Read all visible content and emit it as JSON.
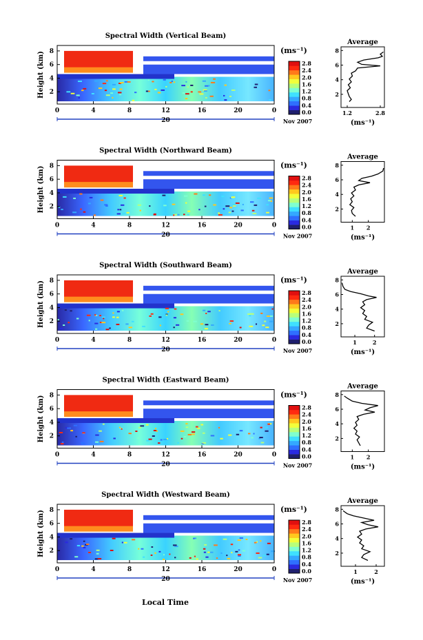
{
  "colors": {
    "colorbar": [
      "#1f1f6e",
      "#2a2ae0",
      "#2f6fff",
      "#34a8ff",
      "#3fe0ff",
      "#7fffd0",
      "#b8ff7a",
      "#f2ff3a",
      "#ffc81e",
      "#ff7a1a",
      "#ff2a10",
      "#e01010"
    ]
  },
  "common": {
    "x_ticks": [
      "0",
      "4",
      "8",
      "12",
      "16",
      "20",
      "0"
    ],
    "date_marker": "20",
    "date_label": "Nov 2007",
    "ylabel": "Height (km)",
    "y_ticks": [
      "2",
      "4",
      "6",
      "8"
    ],
    "colorbar_unit": "(ms⁻¹)",
    "colorbar_ticks": [
      "0.0",
      "0.4",
      "0.8",
      "1.2",
      "1.6",
      "2.0",
      "2.4",
      "2.8"
    ],
    "avg_title": "Average",
    "avg_xlabel": "(ms⁻¹)",
    "xlabel": "Local Time"
  },
  "chart_data": [
    {
      "type": "heatmap",
      "title": "Spectral Width (Vertical Beam)",
      "avg_xticks": [
        "1.2",
        "2.8"
      ],
      "avg_xlim": [
        0.9,
        3.0
      ],
      "avg_profile": [
        [
          1.3,
          1.0
        ],
        [
          1.4,
          1.3
        ],
        [
          1.3,
          1.7
        ],
        [
          1.25,
          2.1
        ],
        [
          1.2,
          2.5
        ],
        [
          1.35,
          2.9
        ],
        [
          1.25,
          3.3
        ],
        [
          1.4,
          3.7
        ],
        [
          1.3,
          4.1
        ],
        [
          1.45,
          4.5
        ],
        [
          1.4,
          4.9
        ],
        [
          1.6,
          5.2
        ],
        [
          1.7,
          5.6
        ],
        [
          2.8,
          5.9
        ],
        [
          1.9,
          6.1
        ],
        [
          1.7,
          6.4
        ],
        [
          2.0,
          6.7
        ],
        [
          2.7,
          7.0
        ],
        [
          2.9,
          7.2
        ],
        [
          2.8,
          7.5
        ],
        [
          2.95,
          7.8
        ]
      ]
    },
    {
      "type": "heatmap",
      "title": "Spectral Width (Northward Beam)",
      "avg_xticks": [
        "1",
        "2"
      ],
      "avg_xlim": [
        0.3,
        3.0
      ],
      "avg_profile": [
        [
          1.2,
          1.0
        ],
        [
          1.0,
          1.4
        ],
        [
          0.95,
          1.8
        ],
        [
          1.1,
          2.2
        ],
        [
          0.85,
          2.6
        ],
        [
          1.0,
          3.0
        ],
        [
          0.9,
          3.4
        ],
        [
          1.1,
          3.8
        ],
        [
          0.95,
          4.2
        ],
        [
          1.2,
          4.6
        ],
        [
          1.1,
          5.0
        ],
        [
          1.4,
          5.3
        ],
        [
          2.1,
          5.6
        ],
        [
          1.4,
          5.9
        ],
        [
          1.6,
          6.2
        ],
        [
          2.2,
          6.5
        ],
        [
          2.6,
          6.8
        ],
        [
          2.9,
          7.2
        ],
        [
          2.95,
          7.6
        ]
      ]
    },
    {
      "type": "heatmap",
      "title": "Spectral Width (Southward Beam)",
      "avg_xticks": [
        "1",
        "2"
      ],
      "avg_xlim": [
        0.3,
        2.5
      ],
      "avg_profile": [
        [
          2.0,
          1.0
        ],
        [
          1.6,
          1.4
        ],
        [
          1.7,
          1.8
        ],
        [
          1.9,
          2.2
        ],
        [
          1.5,
          2.6
        ],
        [
          1.6,
          3.0
        ],
        [
          1.4,
          3.4
        ],
        [
          1.5,
          3.8
        ],
        [
          1.3,
          4.2
        ],
        [
          1.5,
          4.6
        ],
        [
          1.4,
          5.0
        ],
        [
          1.6,
          5.3
        ],
        [
          2.1,
          5.6
        ],
        [
          1.7,
          5.8
        ],
        [
          1.3,
          6.1
        ],
        [
          0.8,
          6.4
        ],
        [
          0.5,
          6.7
        ],
        [
          0.4,
          7.1
        ],
        [
          0.35,
          7.6
        ]
      ]
    },
    {
      "type": "heatmap",
      "title": "Spectral Width (Eastward Beam)",
      "avg_xticks": [
        "1",
        "2"
      ],
      "avg_xlim": [
        0.3,
        3.0
      ],
      "avg_profile": [
        [
          1.5,
          1.0
        ],
        [
          1.4,
          1.4
        ],
        [
          1.3,
          1.8
        ],
        [
          1.45,
          2.2
        ],
        [
          1.2,
          2.6
        ],
        [
          1.3,
          3.0
        ],
        [
          1.1,
          3.4
        ],
        [
          1.3,
          3.8
        ],
        [
          1.2,
          4.2
        ],
        [
          1.4,
          4.6
        ],
        [
          1.3,
          5.0
        ],
        [
          1.7,
          5.3
        ],
        [
          2.4,
          5.6
        ],
        [
          1.8,
          5.9
        ],
        [
          2.1,
          6.2
        ],
        [
          2.6,
          6.5
        ],
        [
          1.6,
          6.8
        ],
        [
          1.0,
          7.1
        ],
        [
          0.7,
          7.5
        ],
        [
          0.5,
          7.8
        ]
      ]
    },
    {
      "type": "heatmap",
      "title": "Spectral Width (Westward Beam)",
      "avg_xticks": [
        "1",
        "2"
      ],
      "avg_xlim": [
        0.3,
        2.4
      ],
      "avg_profile": [
        [
          1.6,
          1.0
        ],
        [
          1.3,
          1.4
        ],
        [
          1.4,
          1.8
        ],
        [
          1.7,
          2.2
        ],
        [
          1.3,
          2.6
        ],
        [
          1.4,
          3.0
        ],
        [
          1.2,
          3.4
        ],
        [
          1.3,
          3.8
        ],
        [
          1.1,
          4.2
        ],
        [
          1.3,
          4.6
        ],
        [
          1.2,
          5.0
        ],
        [
          1.5,
          5.3
        ],
        [
          2.1,
          5.6
        ],
        [
          1.6,
          5.9
        ],
        [
          1.3,
          6.2
        ],
        [
          1.9,
          6.5
        ],
        [
          1.4,
          6.8
        ],
        [
          0.9,
          7.1
        ],
        [
          0.6,
          7.4
        ],
        [
          0.4,
          7.8
        ]
      ]
    }
  ]
}
